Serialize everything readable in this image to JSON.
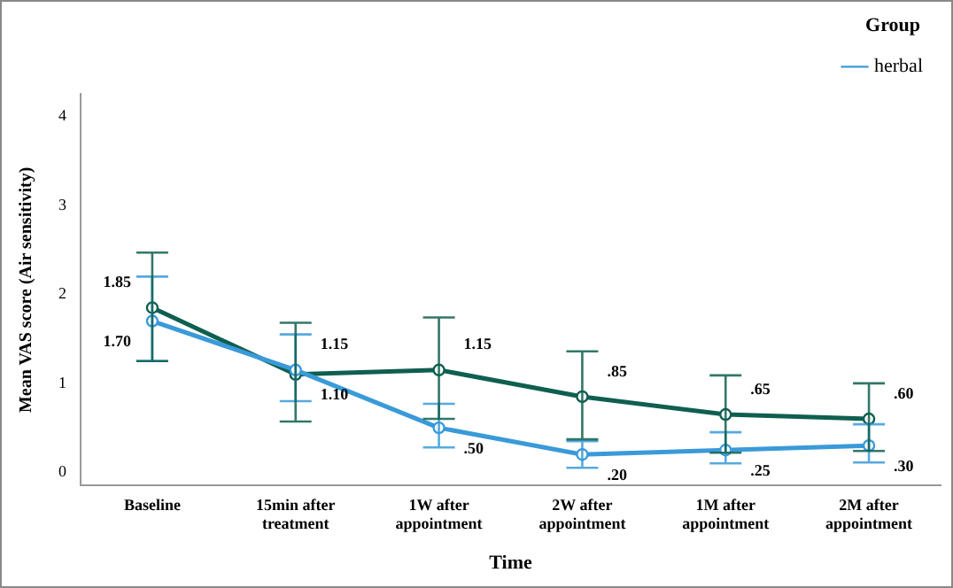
{
  "chart_data": {
    "type": "line",
    "xlabel": "Time",
    "ylabel": "Mean VAS score (Air sensitivity)",
    "legend_title": "Group",
    "legend": "top right",
    "marker": "circle",
    "grid": false,
    "categories": [
      "Baseline",
      "15min after treatment",
      "1W after appointment",
      "2W after appointment",
      "1M after appointment",
      "2M after appointment"
    ],
    "ylim": [
      -0.15,
      4.25
    ],
    "yticks": [
      0,
      1,
      2,
      3,
      4
    ],
    "series": [
      {
        "name": "herbal",
        "color": "#3a9ad9",
        "values": [
          1.7,
          1.15,
          0.5,
          0.2,
          0.25,
          0.3
        ],
        "value_labels": [
          "1.70",
          "1.15",
          ".50",
          ".20",
          ".25",
          ".30"
        ],
        "errors": [
          [
            1.25,
            2.2
          ],
          [
            0.8,
            1.55
          ],
          [
            0.28,
            0.77
          ],
          [
            0.05,
            0.35
          ],
          [
            0.1,
            0.45
          ],
          [
            0.11,
            0.54
          ]
        ]
      },
      {
        "color": "#0f5f4f",
        "values": [
          1.85,
          1.1,
          1.15,
          0.85,
          0.65,
          0.6
        ],
        "value_labels": [
          "1.85",
          "1.10",
          "1.15",
          ".85",
          ".65",
          ".60"
        ],
        "errors": [
          [
            1.25,
            2.47
          ],
          [
            0.57,
            1.68
          ],
          [
            0.6,
            1.74
          ],
          [
            0.37,
            1.36
          ],
          [
            0.22,
            1.09
          ],
          [
            0.24,
            1.0
          ]
        ]
      }
    ]
  }
}
